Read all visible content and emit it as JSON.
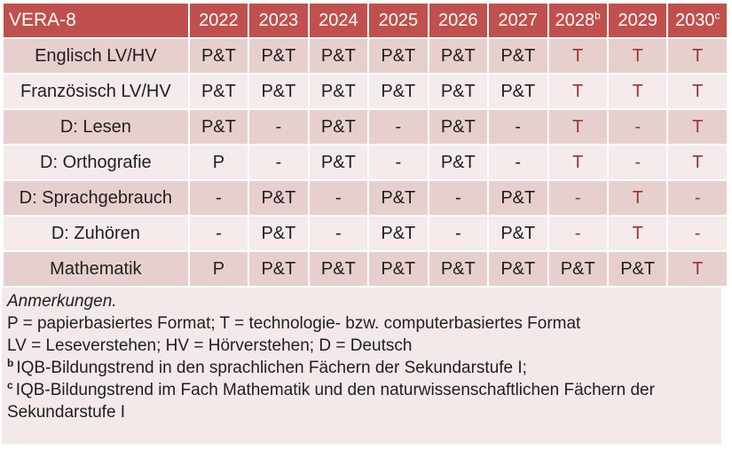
{
  "colors": {
    "header_bg": "#c0504d",
    "header_text": "#ffffff",
    "band_dark": "#e7cfcd",
    "band_light": "#f4ebea",
    "notes_bg": "#f2e9e8",
    "text_dark": "#1f1f1f",
    "text_red": "#963634"
  },
  "table": {
    "title": "VERA-8",
    "years": [
      {
        "label": "2022",
        "sup": ""
      },
      {
        "label": "2023",
        "sup": ""
      },
      {
        "label": "2024",
        "sup": ""
      },
      {
        "label": "2025",
        "sup": ""
      },
      {
        "label": "2026",
        "sup": ""
      },
      {
        "label": "2027",
        "sup": ""
      },
      {
        "label": "2028",
        "sup": "b"
      },
      {
        "label": "2029",
        "sup": ""
      },
      {
        "label": "2030",
        "sup": "c"
      }
    ],
    "rows": [
      {
        "label": "Englisch LV/HV",
        "cells": [
          {
            "t": "P&T",
            "red": false
          },
          {
            "t": "P&T",
            "red": false
          },
          {
            "t": "P&T",
            "red": false
          },
          {
            "t": "P&T",
            "red": false
          },
          {
            "t": "P&T",
            "red": false
          },
          {
            "t": "P&T",
            "red": false
          },
          {
            "t": "T",
            "red": true
          },
          {
            "t": "T",
            "red": true
          },
          {
            "t": "T",
            "red": true
          }
        ]
      },
      {
        "label": "Französisch LV/HV",
        "cells": [
          {
            "t": "P&T",
            "red": false
          },
          {
            "t": "P&T",
            "red": false
          },
          {
            "t": "P&T",
            "red": false
          },
          {
            "t": "P&T",
            "red": false
          },
          {
            "t": "P&T",
            "red": false
          },
          {
            "t": "P&T",
            "red": false
          },
          {
            "t": "T",
            "red": true
          },
          {
            "t": "T",
            "red": true
          },
          {
            "t": "T",
            "red": true
          }
        ]
      },
      {
        "label": "D: Lesen",
        "cells": [
          {
            "t": "P&T",
            "red": false
          },
          {
            "t": "-",
            "red": false
          },
          {
            "t": "P&T",
            "red": false
          },
          {
            "t": "-",
            "red": false
          },
          {
            "t": "P&T",
            "red": false
          },
          {
            "t": "-",
            "red": false
          },
          {
            "t": "T",
            "red": true
          },
          {
            "t": "-",
            "red": true
          },
          {
            "t": "T",
            "red": true
          }
        ]
      },
      {
        "label": "D: Orthografie",
        "cells": [
          {
            "t": "P",
            "red": false
          },
          {
            "t": "-",
            "red": false
          },
          {
            "t": "P&T",
            "red": false
          },
          {
            "t": "-",
            "red": false
          },
          {
            "t": "P&T",
            "red": false
          },
          {
            "t": "-",
            "red": false
          },
          {
            "t": "T",
            "red": true
          },
          {
            "t": "-",
            "red": true
          },
          {
            "t": "T",
            "red": true
          }
        ]
      },
      {
        "label": "D: Sprachgebrauch",
        "cells": [
          {
            "t": "-",
            "red": false
          },
          {
            "t": "P&T",
            "red": false
          },
          {
            "t": "-",
            "red": false
          },
          {
            "t": "P&T",
            "red": false
          },
          {
            "t": "-",
            "red": false
          },
          {
            "t": "P&T",
            "red": false
          },
          {
            "t": "-",
            "red": true
          },
          {
            "t": "T",
            "red": true
          },
          {
            "t": "-",
            "red": true
          }
        ]
      },
      {
        "label": "D: Zuhören",
        "cells": [
          {
            "t": "-",
            "red": false
          },
          {
            "t": "P&T",
            "red": false
          },
          {
            "t": "-",
            "red": false
          },
          {
            "t": "P&T",
            "red": false
          },
          {
            "t": "-",
            "red": false
          },
          {
            "t": "P&T",
            "red": false
          },
          {
            "t": "-",
            "red": true
          },
          {
            "t": "T",
            "red": true
          },
          {
            "t": "-",
            "red": true
          }
        ]
      },
      {
        "label": "Mathematik",
        "cells": [
          {
            "t": "P",
            "red": false
          },
          {
            "t": "P&T",
            "red": false
          },
          {
            "t": "P&T",
            "red": false
          },
          {
            "t": "P&T",
            "red": false
          },
          {
            "t": "P&T",
            "red": false
          },
          {
            "t": "P&T",
            "red": false
          },
          {
            "t": "P&T",
            "red": false
          },
          {
            "t": "P&T",
            "red": false
          },
          {
            "t": "T",
            "red": true
          }
        ]
      }
    ]
  },
  "notes": {
    "lines": [
      {
        "sup": "",
        "italic": true,
        "text": "Anmerkungen."
      },
      {
        "sup": "",
        "italic": false,
        "text": "P = papierbasiertes Format; T = technologie- bzw. computerbasiertes Format"
      },
      {
        "sup": "",
        "italic": false,
        "text": "LV = Leseverstehen; HV = Hörverstehen; D = Deutsch"
      },
      {
        "sup": "b",
        "italic": false,
        "text": "IQB-Bildungstrend in den sprachlichen Fächern der Sekundarstufe I;"
      },
      {
        "sup": "c",
        "italic": false,
        "text": "IQB-Bildungstrend im Fach Mathematik und den naturwissenschaftlichen Fächern der Sekundarstufe I"
      }
    ]
  }
}
